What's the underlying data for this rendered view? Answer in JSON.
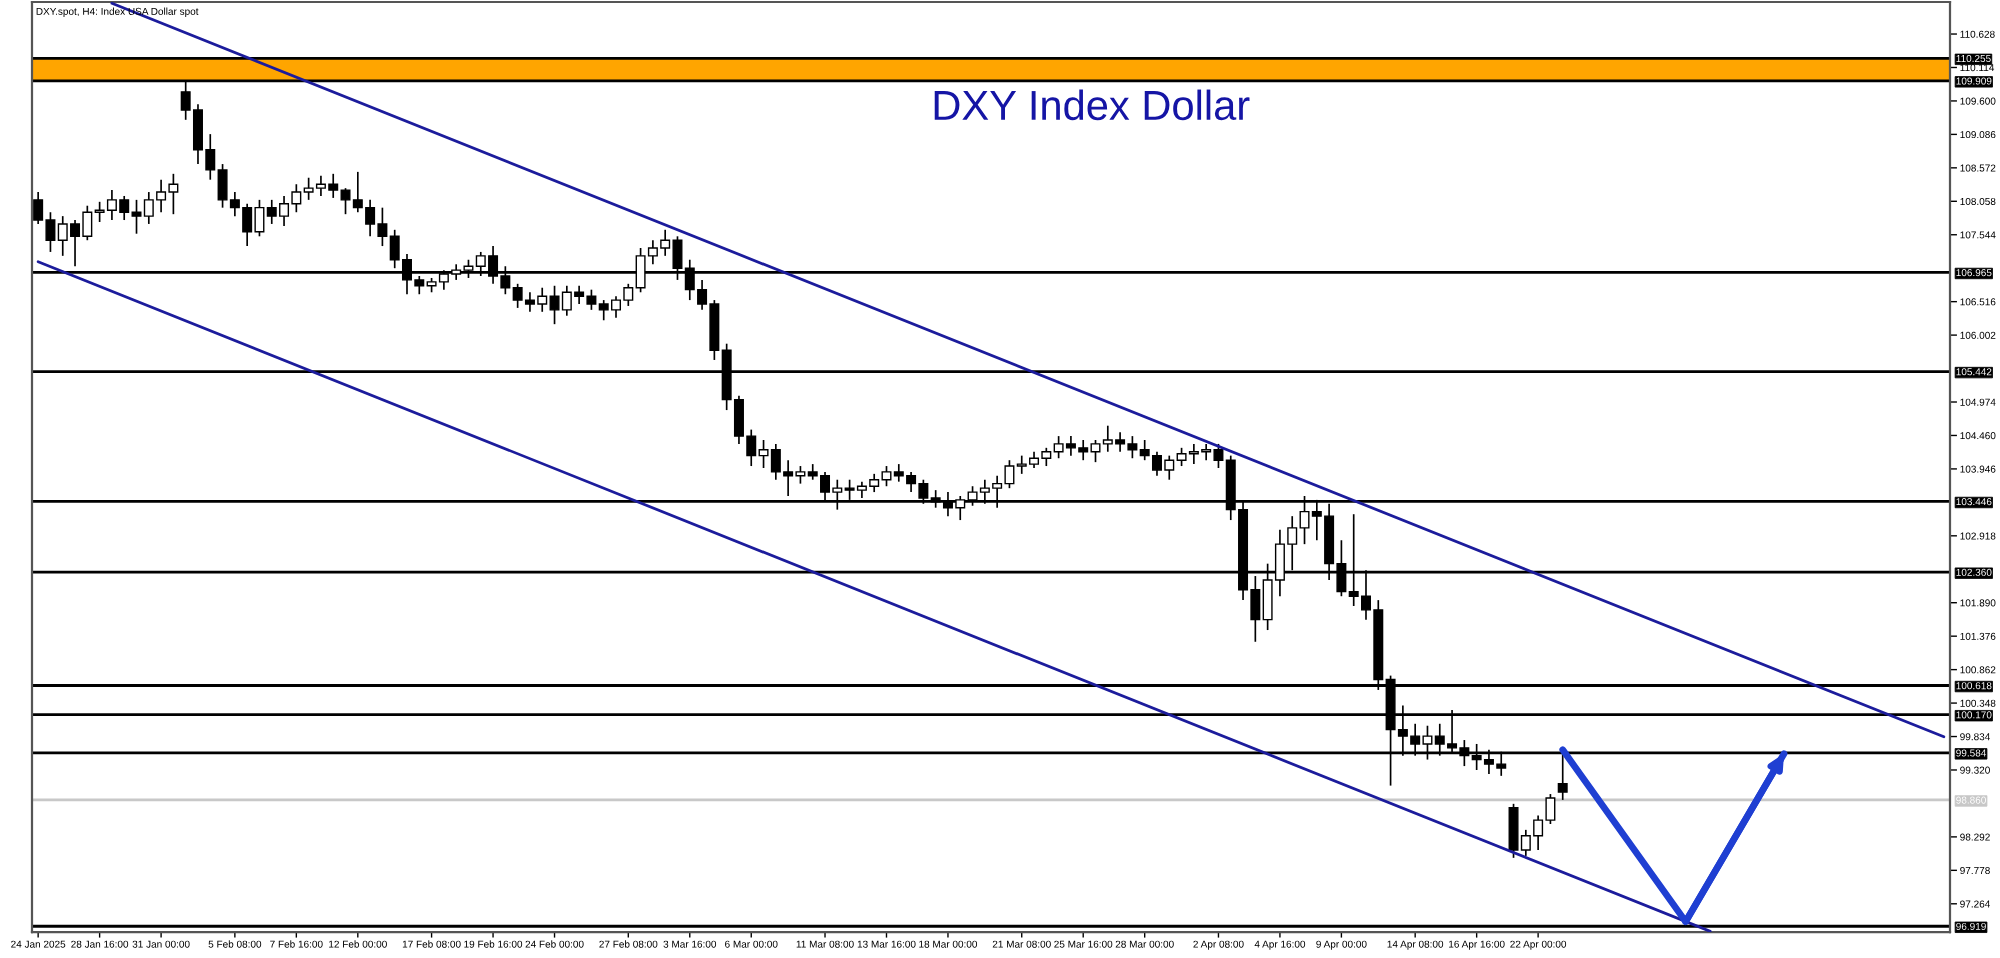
{
  "chart_data": {
    "type": "candlestick",
    "title": "DXY Index Dollar",
    "subtitle": "DXY.spot, H4: Index USA Dollar spot",
    "categories": [
      "24 Jan 2025",
      null,
      null,
      null,
      null,
      "28 Jan 16:00",
      null,
      null,
      null,
      null,
      "31 Jan 00:00",
      null,
      null,
      null,
      null,
      null,
      "5 Feb 08:00",
      null,
      null,
      null,
      null,
      "7 Feb 16:00",
      null,
      null,
      null,
      null,
      "12 Feb 00:00",
      null,
      null,
      null,
      null,
      null,
      "17 Feb 08:00",
      null,
      null,
      null,
      null,
      "19 Feb 16:00",
      null,
      null,
      null,
      null,
      "24 Feb 00:00",
      null,
      null,
      null,
      null,
      null,
      "27 Feb 08:00",
      null,
      null,
      null,
      null,
      "3 Mar 16:00",
      null,
      null,
      null,
      null,
      "6 Mar 00:00",
      null,
      null,
      null,
      null,
      null,
      "11 Mar 08:00",
      null,
      null,
      null,
      null,
      "13 Mar 16:00",
      null,
      null,
      null,
      null,
      "18 Mar 00:00",
      null,
      null,
      null,
      null,
      null,
      "21 Mar 08:00",
      null,
      null,
      null,
      null,
      "25 Mar 16:00",
      null,
      null,
      null,
      null,
      "28 Mar 00:00",
      null,
      null,
      null,
      null,
      null,
      "2 Apr 08:00",
      null,
      null,
      null,
      null,
      "4 Apr 16:00",
      null,
      null,
      null,
      null,
      "9 Apr 00:00",
      null,
      null,
      null,
      null,
      null,
      "14 Apr 08:00",
      null,
      null,
      null,
      null,
      "16 Apr 16:00",
      null,
      null,
      null,
      null,
      "22 Apr 00:00",
      null,
      null,
      null,
      null,
      null,
      null,
      null,
      null,
      null,
      null,
      null,
      null,
      null,
      null,
      null,
      null,
      null,
      null,
      null,
      null,
      null,
      null,
      null,
      null,
      null,
      null,
      null,
      null,
      null,
      null,
      null,
      null,
      null
    ],
    "ohlc": [
      [
        108.08,
        108.2,
        107.71,
        107.77
      ],
      [
        107.77,
        107.89,
        107.28,
        107.46
      ],
      [
        107.46,
        107.83,
        107.22,
        107.71
      ],
      [
        107.71,
        107.77,
        107.06,
        107.52
      ],
      [
        107.52,
        107.99,
        107.46,
        107.89
      ],
      [
        107.89,
        108.05,
        107.74,
        107.92
      ],
      [
        107.92,
        108.23,
        107.77,
        108.08
      ],
      [
        108.08,
        108.14,
        107.77,
        107.89
      ],
      [
        107.89,
        108.08,
        107.56,
        107.83
      ],
      [
        107.83,
        108.2,
        107.71,
        108.08
      ],
      [
        108.08,
        108.39,
        107.89,
        108.2
      ],
      [
        108.2,
        108.48,
        107.86,
        108.32
      ],
      [
        109.74,
        109.92,
        109.31,
        109.46
      ],
      [
        109.46,
        109.55,
        108.63,
        108.85
      ],
      [
        108.85,
        109.09,
        108.39,
        108.54
      ],
      [
        108.54,
        108.63,
        107.96,
        108.08
      ],
      [
        108.08,
        108.2,
        107.83,
        107.96
      ],
      [
        107.96,
        108.02,
        107.37,
        107.59
      ],
      [
        107.59,
        108.08,
        107.52,
        107.96
      ],
      [
        107.96,
        108.08,
        107.71,
        107.83
      ],
      [
        107.83,
        108.14,
        107.68,
        108.02
      ],
      [
        108.02,
        108.32,
        107.89,
        108.2
      ],
      [
        108.2,
        108.42,
        108.08,
        108.26
      ],
      [
        108.26,
        108.45,
        108.14,
        108.32
      ],
      [
        108.32,
        108.48,
        108.11,
        108.23
      ],
      [
        108.23,
        108.26,
        107.86,
        108.08
      ],
      [
        108.08,
        108.51,
        107.89,
        107.96
      ],
      [
        107.96,
        108.08,
        107.52,
        107.71
      ],
      [
        107.71,
        107.96,
        107.37,
        107.52
      ],
      [
        107.52,
        107.62,
        107.03,
        107.16
      ],
      [
        107.16,
        107.25,
        106.63,
        106.85
      ],
      [
        106.85,
        106.91,
        106.63,
        106.76
      ],
      [
        106.76,
        106.88,
        106.66,
        106.82
      ],
      [
        106.82,
        107.0,
        106.7,
        106.94
      ],
      [
        106.94,
        107.09,
        106.85,
        107.0
      ],
      [
        107.0,
        107.16,
        106.88,
        107.06
      ],
      [
        107.06,
        107.28,
        106.91,
        107.22
      ],
      [
        107.22,
        107.37,
        106.79,
        106.91
      ],
      [
        106.91,
        107.06,
        106.63,
        106.73
      ],
      [
        106.73,
        106.79,
        106.42,
        106.54
      ],
      [
        106.54,
        106.66,
        106.36,
        106.48
      ],
      [
        106.48,
        106.73,
        106.36,
        106.6
      ],
      [
        106.6,
        106.76,
        106.17,
        106.39
      ],
      [
        106.39,
        106.76,
        106.3,
        106.66
      ],
      [
        106.66,
        106.76,
        106.48,
        106.6
      ],
      [
        106.6,
        106.7,
        106.39,
        106.48
      ],
      [
        106.48,
        106.54,
        106.23,
        106.39
      ],
      [
        106.39,
        106.6,
        106.27,
        106.54
      ],
      [
        106.54,
        106.79,
        106.45,
        106.73
      ],
      [
        106.73,
        107.34,
        106.66,
        107.22
      ],
      [
        107.22,
        107.46,
        107.09,
        107.34
      ],
      [
        107.34,
        107.62,
        107.22,
        107.46
      ],
      [
        107.46,
        107.52,
        106.85,
        107.03
      ],
      [
        107.03,
        107.16,
        106.54,
        106.7
      ],
      [
        106.7,
        106.85,
        106.39,
        106.48
      ],
      [
        106.48,
        106.54,
        105.62,
        105.77
      ],
      [
        105.77,
        105.87,
        104.85,
        105.01
      ],
      [
        105.01,
        105.07,
        104.33,
        104.45
      ],
      [
        104.45,
        104.55,
        103.99,
        104.15
      ],
      [
        104.15,
        104.39,
        103.96,
        104.24
      ],
      [
        104.24,
        104.33,
        103.78,
        103.9
      ],
      [
        103.9,
        104.08,
        103.53,
        103.84
      ],
      [
        103.84,
        103.99,
        103.72,
        103.9
      ],
      [
        103.9,
        104.02,
        103.78,
        103.84
      ],
      [
        103.84,
        103.9,
        103.47,
        103.59
      ],
      [
        103.59,
        103.78,
        103.32,
        103.65
      ],
      [
        103.65,
        103.78,
        103.47,
        103.62
      ],
      [
        103.62,
        103.75,
        103.5,
        103.68
      ],
      [
        103.68,
        103.87,
        103.59,
        103.78
      ],
      [
        103.78,
        103.99,
        103.68,
        103.9
      ],
      [
        103.9,
        104.02,
        103.75,
        103.84
      ],
      [
        103.84,
        103.9,
        103.59,
        103.72
      ],
      [
        103.72,
        103.78,
        103.41,
        103.5
      ],
      [
        103.5,
        103.62,
        103.35,
        103.44
      ],
      [
        103.44,
        103.59,
        103.22,
        103.35
      ],
      [
        103.35,
        103.53,
        103.16,
        103.47
      ],
      [
        103.47,
        103.68,
        103.38,
        103.59
      ],
      [
        103.59,
        103.78,
        103.41,
        103.65
      ],
      [
        103.65,
        103.84,
        103.35,
        103.72
      ],
      [
        103.72,
        104.08,
        103.65,
        103.99
      ],
      [
        103.99,
        104.15,
        103.87,
        104.02
      ],
      [
        104.02,
        104.21,
        103.96,
        104.11
      ],
      [
        104.11,
        104.27,
        103.99,
        104.21
      ],
      [
        104.21,
        104.45,
        104.11,
        104.33
      ],
      [
        104.33,
        104.45,
        104.15,
        104.27
      ],
      [
        104.27,
        104.39,
        104.08,
        104.21
      ],
      [
        104.21,
        104.39,
        104.05,
        104.33
      ],
      [
        104.33,
        104.61,
        104.21,
        104.39
      ],
      [
        104.39,
        104.51,
        104.21,
        104.33
      ],
      [
        104.33,
        104.45,
        104.11,
        104.24
      ],
      [
        104.24,
        104.39,
        104.08,
        104.15
      ],
      [
        104.15,
        104.21,
        103.84,
        103.93
      ],
      [
        103.93,
        104.15,
        103.78,
        104.08
      ],
      [
        104.08,
        104.27,
        103.99,
        104.18
      ],
      [
        104.18,
        104.33,
        104.02,
        104.21
      ],
      [
        104.21,
        104.33,
        104.08,
        104.24
      ],
      [
        104.24,
        104.33,
        103.96,
        104.08
      ],
      [
        104.08,
        104.15,
        103.16,
        103.32
      ],
      [
        103.32,
        103.47,
        101.93,
        102.09
      ],
      [
        102.09,
        102.3,
        101.29,
        101.63
      ],
      [
        101.63,
        102.49,
        101.47,
        102.24
      ],
      [
        102.24,
        103.01,
        101.99,
        102.79
      ],
      [
        102.79,
        103.22,
        102.39,
        103.04
      ],
      [
        103.04,
        103.53,
        102.79,
        103.29
      ],
      [
        103.29,
        103.47,
        102.85,
        103.22
      ],
      [
        103.22,
        103.41,
        102.24,
        102.49
      ],
      [
        102.49,
        102.85,
        101.99,
        102.06
      ],
      [
        102.06,
        103.25,
        101.84,
        101.99
      ],
      [
        101.99,
        102.39,
        101.63,
        101.78
      ],
      [
        101.78,
        101.93,
        100.55,
        100.71
      ],
      [
        100.71,
        100.77,
        99.08,
        99.94
      ],
      [
        99.94,
        100.31,
        99.54,
        99.84
      ],
      [
        99.84,
        100.03,
        99.54,
        99.72
      ],
      [
        99.72,
        100.0,
        99.48,
        99.84
      ],
      [
        99.84,
        100.03,
        99.54,
        99.72
      ],
      [
        99.72,
        100.24,
        99.57,
        99.66
      ],
      [
        99.66,
        99.78,
        99.38,
        99.54
      ],
      [
        99.54,
        99.72,
        99.32,
        99.48
      ],
      [
        99.48,
        99.63,
        99.26,
        99.41
      ],
      [
        99.41,
        99.6,
        99.23,
        99.35
      ],
      [
        98.74,
        98.8,
        97.97,
        98.09
      ],
      [
        98.09,
        98.4,
        98.0,
        98.31
      ],
      [
        98.31,
        98.62,
        98.09,
        98.55
      ],
      [
        98.55,
        98.95,
        98.49,
        98.89
      ],
      [
        99.11,
        99.63,
        98.86,
        98.98
      ],
      null,
      null,
      null,
      null,
      null,
      null,
      null,
      null,
      null,
      null,
      null,
      null,
      null,
      null,
      null,
      null,
      null,
      null,
      null,
      null,
      null,
      null,
      null,
      null,
      null,
      null,
      null,
      null,
      null,
      null,
      null
    ],
    "series": [
      {
        "type": "line",
        "color": "#1c1c9c",
        "values": [
          null,
          null,
          null,
          null,
          null,
          null,
          111.1,
          null,
          null,
          null,
          null,
          null,
          null,
          null,
          null,
          null,
          null,
          null,
          null,
          null,
          null,
          null,
          null,
          null,
          null,
          null,
          null,
          null,
          null,
          null,
          null,
          null,
          null,
          null,
          null,
          null,
          null,
          null,
          null,
          null,
          null,
          null,
          null,
          null,
          null,
          null,
          null,
          null,
          null,
          null,
          null,
          null,
          null,
          null,
          null,
          null,
          null,
          null,
          null,
          null,
          null,
          null,
          null,
          null,
          null,
          null,
          null,
          null,
          null,
          null,
          null,
          null,
          null,
          null,
          null,
          null,
          null,
          null,
          null,
          null,
          null,
          null,
          null,
          null,
          null,
          null,
          null,
          null,
          null,
          null,
          null,
          null,
          null,
          null,
          null,
          null,
          null,
          null,
          null,
          null,
          null,
          null,
          null,
          null,
          null,
          null,
          null,
          null,
          null,
          null,
          null,
          null,
          null,
          null,
          null,
          null,
          null,
          null,
          null,
          null,
          null,
          null,
          null,
          null,
          null,
          null,
          null,
          null,
          null,
          null,
          null,
          null,
          null,
          null,
          null,
          null,
          null,
          null,
          null,
          null,
          null,
          null,
          null,
          null,
          null,
          null,
          null,
          null,
          null,
          null,
          null,
          null,
          null,
          null,
          null,
          99.83
        ]
      },
      {
        "type": "line",
        "color": "#1c1c9c",
        "values": [
          107.13,
          null,
          null,
          null,
          null,
          null,
          null,
          null,
          null,
          null,
          null,
          null,
          null,
          null,
          null,
          null,
          null,
          null,
          null,
          null,
          null,
          null,
          null,
          null,
          null,
          null,
          null,
          null,
          null,
          null,
          null,
          null,
          null,
          null,
          null,
          null,
          null,
          null,
          null,
          null,
          null,
          null,
          null,
          null,
          null,
          null,
          null,
          null,
          null,
          null,
          null,
          null,
          null,
          null,
          null,
          null,
          null,
          null,
          null,
          null,
          null,
          null,
          null,
          null,
          null,
          null,
          null,
          null,
          null,
          null,
          null,
          null,
          null,
          null,
          null,
          null,
          null,
          null,
          null,
          null,
          null,
          null,
          null,
          null,
          null,
          null,
          null,
          null,
          null,
          null,
          null,
          null,
          null,
          null,
          null,
          null,
          null,
          null,
          null,
          null,
          null,
          null,
          null,
          null,
          null,
          null,
          null,
          null,
          null,
          null,
          null,
          null,
          null,
          null,
          null,
          null,
          null,
          null,
          null,
          null,
          null,
          null,
          null,
          null,
          null,
          null,
          null,
          null,
          null,
          null,
          null,
          null,
          null,
          null,
          null,
          null,
          96.84,
          null,
          null,
          null,
          null,
          null,
          null,
          null,
          null,
          null,
          null,
          null,
          null,
          null,
          null,
          null,
          null,
          null,
          null,
          null
        ]
      },
      {
        "type": "line",
        "color": "#1f3fd2",
        "values": [
          null,
          null,
          null,
          null,
          null,
          null,
          null,
          null,
          null,
          null,
          null,
          null,
          null,
          null,
          null,
          null,
          null,
          null,
          null,
          null,
          null,
          null,
          null,
          null,
          null,
          null,
          null,
          null,
          null,
          null,
          null,
          null,
          null,
          null,
          null,
          null,
          null,
          null,
          null,
          null,
          null,
          null,
          null,
          null,
          null,
          null,
          null,
          null,
          null,
          null,
          null,
          null,
          null,
          null,
          null,
          null,
          null,
          null,
          null,
          null,
          null,
          null,
          null,
          null,
          null,
          null,
          null,
          null,
          null,
          null,
          null,
          null,
          null,
          null,
          null,
          null,
          null,
          null,
          null,
          null,
          null,
          null,
          null,
          null,
          null,
          null,
          null,
          null,
          null,
          null,
          null,
          null,
          null,
          null,
          null,
          null,
          null,
          null,
          null,
          null,
          null,
          null,
          null,
          null,
          null,
          null,
          null,
          null,
          null,
          null,
          null,
          null,
          null,
          null,
          null,
          null,
          null,
          null,
          null,
          null,
          null,
          null,
          null,
          null,
          99.63,
          null,
          null,
          null,
          null,
          null,
          null,
          null,
          null,
          null,
          96.99,
          null,
          null,
          null,
          null,
          null,
          null,
          null,
          99.57,
          null,
          null,
          null,
          null,
          null,
          null,
          null,
          null,
          null,
          null,
          null,
          null,
          null
        ]
      }
    ],
    "ylim": [
      96.83,
      111.12
    ],
    "yticks": [
      97.264,
      97.778,
      98.292,
      {
        "value": 99.32,
        "label": "99.320"
      },
      99.834,
      100.348,
      100.862,
      101.376,
      {
        "value": 101.89,
        "label": "101.890"
      },
      102.918,
      103.946,
      {
        "value": 104.46,
        "label": "104.460"
      },
      104.974,
      106.002,
      106.516,
      107.544,
      108.058,
      108.572,
      109.086,
      {
        "value": 109.6,
        "label": "109.600"
      },
      110.114,
      110.628
    ],
    "ref_lines": [
      {
        "axis": "y",
        "value": 110.255,
        "label": "110.255",
        "color": "#000000"
      },
      {
        "axis": "y",
        "value": 109.909,
        "label": "109.909",
        "color": "#000000"
      },
      {
        "axis": "y",
        "value": 106.965,
        "label": "106.965",
        "color": "#000000"
      },
      {
        "axis": "y",
        "value": 105.442,
        "label": "105.442",
        "color": "#000000"
      },
      {
        "axis": "y",
        "value": 103.446,
        "label": "103.446",
        "color": "#000000"
      },
      {
        "axis": "y",
        "value": 102.36,
        "label": "102.360",
        "color": "#000000"
      },
      {
        "axis": "y",
        "value": 100.618,
        "label": "100.618",
        "color": "#000000"
      },
      {
        "axis": "y",
        "value": 100.17,
        "label": "100.170",
        "color": "#000000"
      },
      {
        "axis": "y",
        "value": 99.584,
        "label": "99.584",
        "color": "#000000"
      },
      {
        "axis": "y",
        "value": 98.86,
        "label": "98.860",
        "color": "#c8c8c8"
      },
      {
        "axis": "y",
        "value": 96.919,
        "label": "96.919",
        "color": "#000000"
      }
    ],
    "bands": [
      {
        "axis": "y",
        "from": 109.909,
        "to": 110.255,
        "color": "#ffa500"
      }
    ],
    "grid": false,
    "legend": false
  }
}
